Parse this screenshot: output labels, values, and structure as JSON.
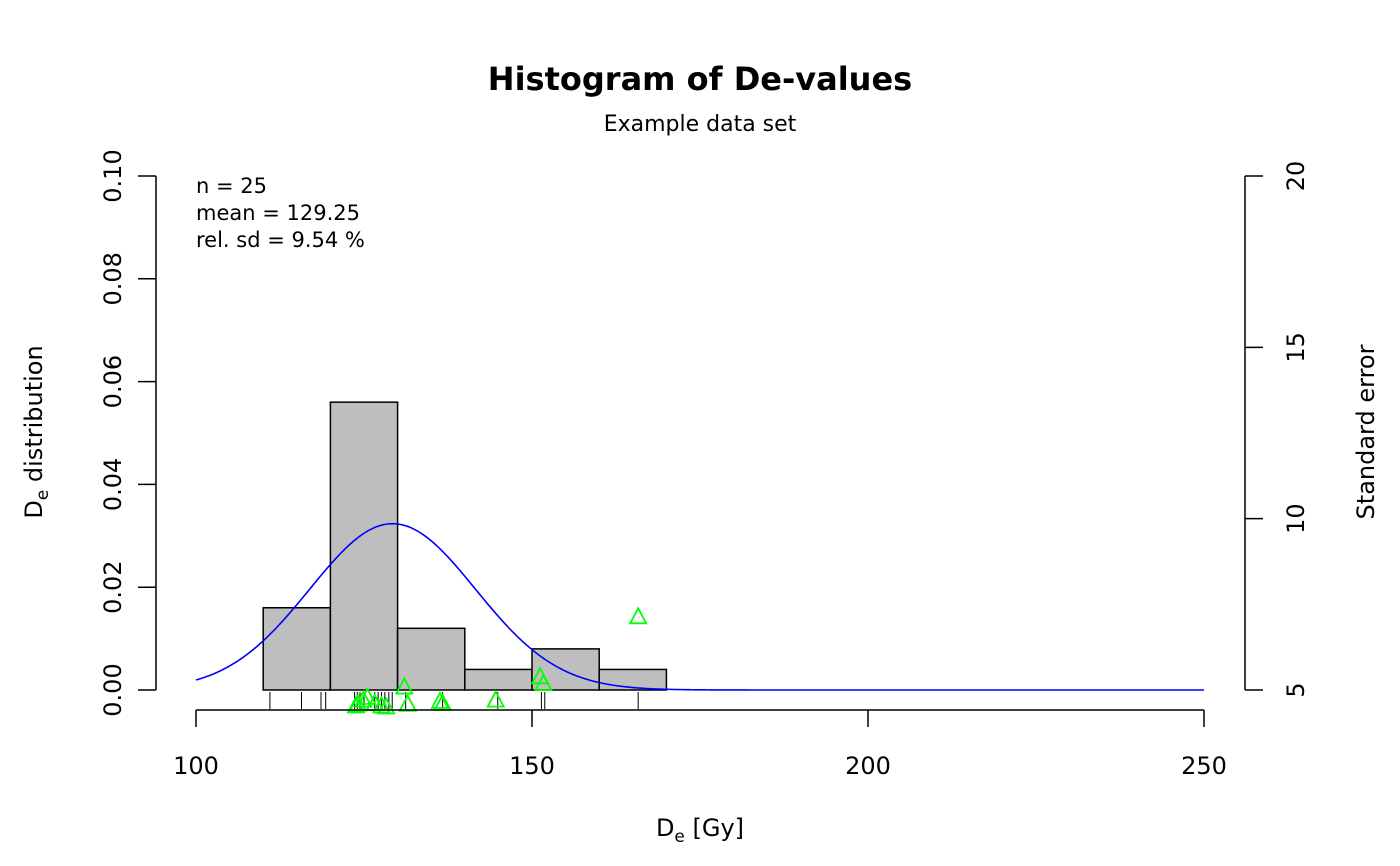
{
  "chart_data": {
    "type": "bar",
    "title": "Histogram of De-values",
    "subtitle": "Example data set",
    "xlabel": {
      "main": "D",
      "sub": "e",
      "rest": " [Gy]"
    },
    "ylabel_left": {
      "main": "D",
      "sub": "e",
      "rest": " distribution"
    },
    "ylabel_right": "Standard error",
    "xlim": [
      100,
      250
    ],
    "ylim_left": [
      0,
      0.1
    ],
    "ylim_right": [
      5,
      20
    ],
    "x_ticks": [
      100,
      150,
      200,
      250
    ],
    "y_ticks_left": [
      "0.00",
      "0.02",
      "0.04",
      "0.06",
      "0.08",
      "0.10"
    ],
    "y_ticks_right": [
      5,
      10,
      15,
      20
    ],
    "stats": [
      "n = 25",
      "mean = 129.25",
      "rel. sd = 9.54 %"
    ],
    "bins": [
      {
        "from": 110,
        "to": 120,
        "density": 0.016
      },
      {
        "from": 120,
        "to": 130,
        "density": 0.056
      },
      {
        "from": 130,
        "to": 140,
        "density": 0.012
      },
      {
        "from": 140,
        "to": 150,
        "density": 0.004
      },
      {
        "from": 150,
        "to": 160,
        "density": 0.008
      },
      {
        "from": 160,
        "to": 170,
        "density": 0.004
      }
    ],
    "normal_curve": {
      "mean": 129.25,
      "sd": 12.33,
      "x_range": [
        100,
        250
      ]
    },
    "rug": [
      111,
      115.7,
      118.6,
      119.3,
      123.6,
      124,
      124.4,
      125,
      126.6,
      127.1,
      127.6,
      128.1,
      128.7,
      129.2,
      131.2,
      136.7,
      144.9,
      151.4,
      151.9,
      165.8
    ],
    "standard_errors": [
      {
        "x": 123.8,
        "se": 4.55
      },
      {
        "x": 124.1,
        "se": 4.6
      },
      {
        "x": 124.9,
        "se": 4.72
      },
      {
        "x": 125.5,
        "se": 4.8
      },
      {
        "x": 126.6,
        "se": 4.62
      },
      {
        "x": 127.6,
        "se": 4.55
      },
      {
        "x": 128.3,
        "se": 4.52
      },
      {
        "x": 131.0,
        "se": 5.1
      },
      {
        "x": 131.5,
        "se": 4.6
      },
      {
        "x": 136.3,
        "se": 4.68
      },
      {
        "x": 136.7,
        "se": 4.62
      },
      {
        "x": 144.6,
        "se": 4.72
      },
      {
        "x": 151.2,
        "se": 5.4
      },
      {
        "x": 151.7,
        "se": 5.2
      },
      {
        "x": 165.8,
        "se": 7.15
      }
    ],
    "colors": {
      "bars": "#bebebe",
      "curve": "#0000ff",
      "standard_error": "#00ff00"
    },
    "grid": false
  }
}
